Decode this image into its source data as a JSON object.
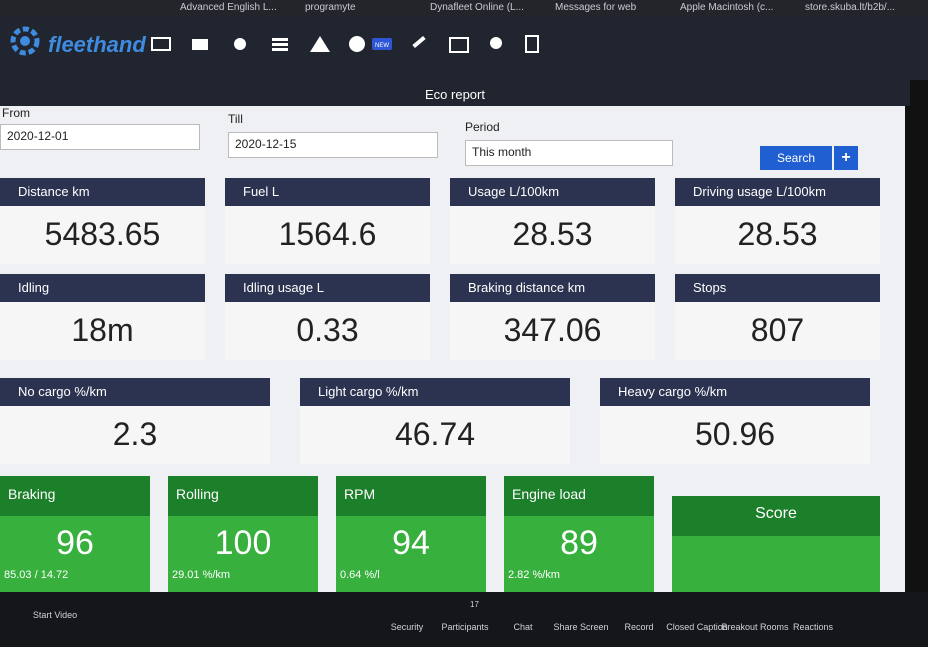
{
  "bookmarks": [
    "Advanced English L...",
    "programyte",
    "Dynafleet Online (L...",
    "Messages for web",
    "Apple Macintosh (c...",
    "store.skuba.lt/b2b/..."
  ],
  "nav": {
    "logo": "fleethand",
    "badge": "NEW"
  },
  "page_title": "Eco report",
  "filters": {
    "from_label": "From",
    "from_value": "2020-12-01",
    "till_label": "Till",
    "till_value": "2020-12-15",
    "period_label": "Period",
    "period_value": "This month",
    "search": "Search",
    "add": "+"
  },
  "metrics": [
    [
      {
        "label": "Distance km",
        "value": "5483.65"
      },
      {
        "label": "Fuel L",
        "value": "1564.6"
      },
      {
        "label": "Usage L/100km",
        "value": "28.53"
      },
      {
        "label": "Driving usage L/100km",
        "value": "28.53"
      }
    ],
    [
      {
        "label": "Idling",
        "value": "18m"
      },
      {
        "label": "Idling usage L",
        "value": "0.33"
      },
      {
        "label": "Braking distance km",
        "value": "347.06"
      },
      {
        "label": "Stops",
        "value": "807"
      }
    ],
    [
      {
        "label": "No cargo %/km",
        "value": "2.3"
      },
      {
        "label": "Light cargo %/km",
        "value": "46.74"
      },
      {
        "label": "Heavy cargo %/km",
        "value": "50.96"
      }
    ]
  ],
  "scores": [
    {
      "label": "Braking",
      "value": "96",
      "detail": "85.03 / 14.72"
    },
    {
      "label": "Rolling",
      "value": "100",
      "detail": "29.01 %/km"
    },
    {
      "label": "RPM",
      "value": "94",
      "detail": "0.64 %/l"
    },
    {
      "label": "Engine load",
      "value": "89",
      "detail": "2.82 %/km"
    }
  ],
  "score_total": {
    "label": "Score"
  },
  "zoom_bar": {
    "start_video": "Start Video",
    "participants_count": "17",
    "items": [
      "Security",
      "Participants",
      "Chat",
      "Share Screen",
      "Record",
      "Closed Caption",
      "Breakout Rooms",
      "Reactions"
    ]
  }
}
